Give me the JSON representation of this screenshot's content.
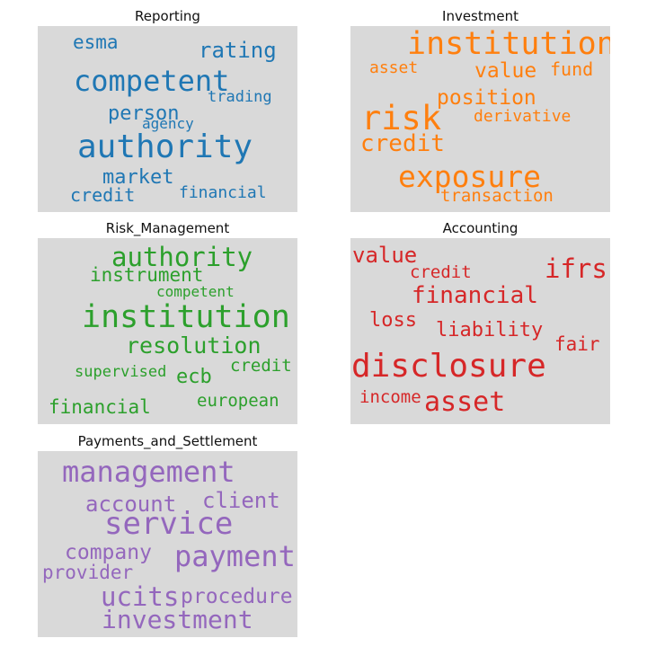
{
  "panels": [
    {
      "title": "Reporting",
      "color": "#1f77b4",
      "words": [
        "esma",
        "rating",
        "competent",
        "trading",
        "person",
        "agency",
        "authority",
        "market",
        "credit",
        "financial"
      ]
    },
    {
      "title": "Investment",
      "color": "#ff7f0e",
      "words": [
        "institution",
        "asset",
        "value",
        "fund",
        "position",
        "risk",
        "derivative",
        "credit",
        "exposure",
        "transaction"
      ]
    },
    {
      "title": "Risk_Management",
      "color": "#2ca02c",
      "words": [
        "authority",
        "instrument",
        "competent",
        "institution",
        "resolution",
        "supervised",
        "ecb",
        "credit",
        "european",
        "financial"
      ]
    },
    {
      "title": "Accounting",
      "color": "#d62728",
      "words": [
        "value",
        "credit",
        "ifrs",
        "financial",
        "loss",
        "liability",
        "fair",
        "disclosure",
        "income",
        "asset"
      ]
    },
    {
      "title": "Payments_and_Settlement",
      "color": "#9467bd",
      "words": [
        "management",
        "account",
        "client",
        "service",
        "company",
        "payment",
        "provider",
        "ucits",
        "procedure",
        "investment"
      ]
    }
  ]
}
